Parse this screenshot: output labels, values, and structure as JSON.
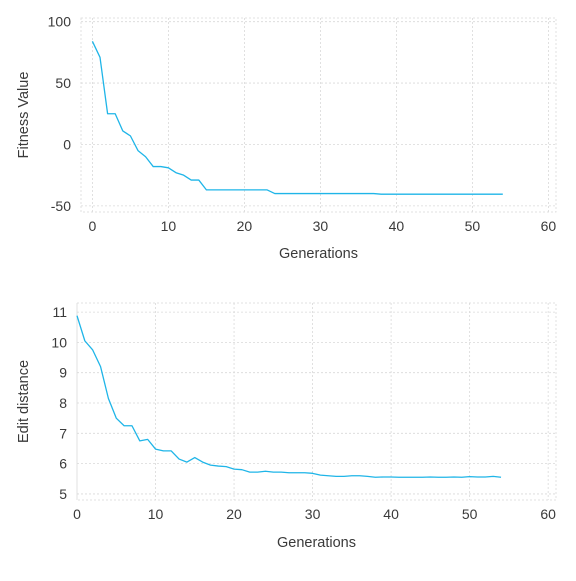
{
  "chart_data": [
    {
      "type": "line",
      "title": "",
      "xlabel": "Generations",
      "ylabel": "Fitness Value",
      "xlim": [
        -1.5,
        61
      ],
      "ylim": [
        -55,
        103
      ],
      "xticks": [
        0,
        10,
        20,
        30,
        40,
        50,
        60
      ],
      "yticks": [
        -50,
        0,
        50,
        100
      ],
      "grid": true,
      "legend": "none",
      "color": "#1fb5e8",
      "series": [
        {
          "x": [
            0,
            1,
            2,
            3,
            4,
            5,
            6,
            7,
            8,
            9,
            10,
            11,
            12,
            13,
            14,
            15,
            16,
            17,
            18,
            19,
            20,
            21,
            22,
            23,
            24,
            25,
            26,
            27,
            28,
            29,
            30,
            31,
            32,
            33,
            34,
            35,
            36,
            37,
            38,
            39,
            40,
            41,
            42,
            43,
            44,
            45,
            46,
            47,
            48,
            49,
            50,
            51,
            52,
            53,
            54
          ],
          "y": [
            84,
            71,
            25,
            25,
            11,
            7,
            -5,
            -10,
            -18,
            -18,
            -19,
            -23,
            -25,
            -29,
            -29,
            -37,
            -37,
            -37,
            -37,
            -37,
            -37,
            -37,
            -37,
            -37,
            -40,
            -40,
            -40,
            -40,
            -40,
            -40,
            -40,
            -40,
            -40,
            -40,
            -40,
            -40,
            -40,
            -40,
            -40.5,
            -40.5,
            -40.5,
            -40.5,
            -40.5,
            -40.5,
            -40.5,
            -40.5,
            -40.5,
            -40.5,
            -40.5,
            -40.5,
            -40.5,
            -40.5,
            -40.5,
            -40.5,
            -40.5
          ]
        }
      ]
    },
    {
      "type": "line",
      "title": "",
      "xlabel": "Generations",
      "ylabel": "Edit distance",
      "xlim": [
        0,
        61
      ],
      "ylim": [
        4.8,
        11.3
      ],
      "xticks": [
        0,
        10,
        20,
        30,
        40,
        50,
        60
      ],
      "yticks": [
        5,
        6,
        7,
        8,
        9,
        10,
        11
      ],
      "grid": true,
      "legend": "none",
      "color": "#1fb5e8",
      "series": [
        {
          "x": [
            0,
            1,
            2,
            3,
            4,
            5,
            6,
            7,
            8,
            9,
            10,
            11,
            12,
            13,
            14,
            15,
            16,
            17,
            18,
            19,
            20,
            21,
            22,
            23,
            24,
            25,
            26,
            27,
            28,
            29,
            30,
            31,
            32,
            33,
            34,
            35,
            36,
            37,
            38,
            39,
            40,
            41,
            42,
            43,
            44,
            45,
            46,
            47,
            48,
            49,
            50,
            51,
            52,
            53,
            54
          ],
          "y": [
            10.88,
            10.05,
            9.75,
            9.2,
            8.15,
            7.5,
            7.25,
            7.25,
            6.75,
            6.8,
            6.48,
            6.42,
            6.42,
            6.15,
            6.05,
            6.2,
            6.05,
            5.95,
            5.92,
            5.9,
            5.82,
            5.8,
            5.72,
            5.72,
            5.75,
            5.72,
            5.72,
            5.7,
            5.7,
            5.7,
            5.68,
            5.62,
            5.6,
            5.58,
            5.58,
            5.6,
            5.6,
            5.58,
            5.55,
            5.56,
            5.56,
            5.55,
            5.55,
            5.55,
            5.55,
            5.56,
            5.55,
            5.55,
            5.56,
            5.55,
            5.57,
            5.56,
            5.56,
            5.58,
            5.55
          ]
        }
      ]
    }
  ]
}
